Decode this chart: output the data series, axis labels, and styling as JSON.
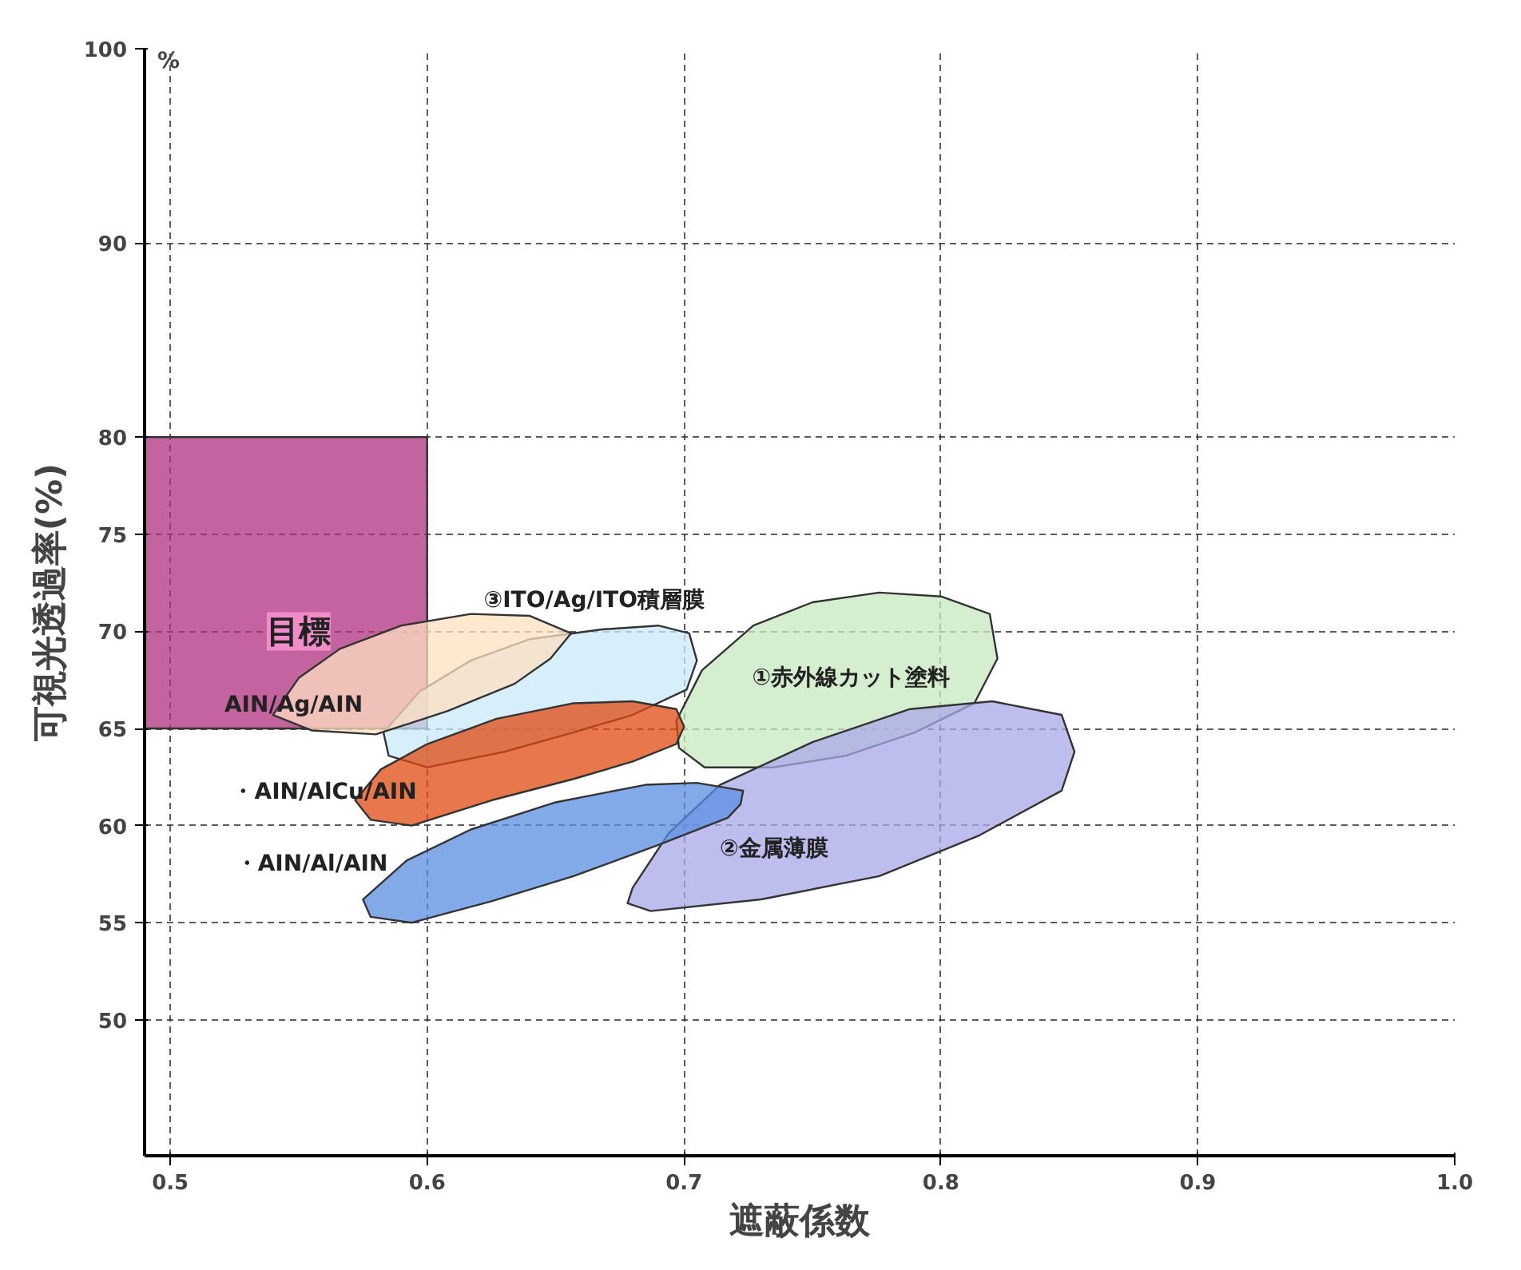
{
  "chart_data": {
    "type": "area",
    "xlabel": "遮蔽係数",
    "ylabel": "可視光透過率(%)",
    "xlim": [
      0.49,
      1.0
    ],
    "ylim": [
      43,
      100
    ],
    "xticks": [
      0.5,
      0.6,
      0.7,
      0.8,
      0.9,
      {
        "value": 1.0,
        "label": "1.0"
      }
    ],
    "yticks": [
      50,
      55,
      60,
      65,
      70,
      75,
      80,
      90,
      100
    ],
    "grid": true,
    "series": [
      {
        "color": "#b0307f",
        "x": [
          0.49,
          0.6,
          0.6,
          0.49
        ],
        "values": [
          65,
          65,
          80,
          80
        ]
      },
      {
        "color": "#c8e8c0",
        "x": [
          0.697,
          0.707,
          0.727,
          0.75,
          0.776,
          0.8,
          0.819,
          0.822,
          0.813,
          0.79,
          0.763,
          0.735,
          0.708,
          0.698
        ],
        "values": [
          65.4,
          68.0,
          70.3,
          71.5,
          72.0,
          71.8,
          70.9,
          68.6,
          66.3,
          64.8,
          63.6,
          63.0,
          63.0,
          64.0
        ]
      },
      {
        "color": "#a8a8e8",
        "x": [
          0.68,
          0.694,
          0.714,
          0.75,
          0.788,
          0.82,
          0.847,
          0.852,
          0.847,
          0.815,
          0.776,
          0.73,
          0.687,
          0.678
        ],
        "values": [
          56.8,
          59.6,
          62.1,
          64.3,
          66.0,
          66.4,
          65.7,
          63.8,
          61.8,
          59.5,
          57.4,
          56.2,
          55.6,
          56.0
        ]
      },
      {
        "color": "#c8eaf8",
        "x": [
          0.583,
          0.597,
          0.617,
          0.64,
          0.668,
          0.69,
          0.702,
          0.705,
          0.701,
          0.68,
          0.657,
          0.63,
          0.6,
          0.585
        ],
        "values": [
          64.8,
          66.9,
          68.5,
          69.6,
          70.1,
          70.3,
          69.9,
          68.5,
          67.0,
          65.7,
          64.8,
          63.8,
          63.0,
          63.6
        ]
      },
      {
        "color": "#fde0c0",
        "x": [
          0.54,
          0.55,
          0.566,
          0.59,
          0.617,
          0.64,
          0.656,
          0.648,
          0.634,
          0.608,
          0.58,
          0.555
        ],
        "values": [
          65.7,
          67.6,
          69.1,
          70.3,
          70.9,
          70.8,
          69.9,
          68.6,
          67.3,
          65.9,
          64.7,
          64.9
        ]
      },
      {
        "color": "#e04a10",
        "x": [
          0.572,
          0.582,
          0.6,
          0.627,
          0.657,
          0.68,
          0.697,
          0.7,
          0.697,
          0.68,
          0.657,
          0.625,
          0.594,
          0.578
        ],
        "values": [
          61.3,
          62.9,
          64.2,
          65.5,
          66.3,
          66.4,
          66.0,
          65.1,
          64.2,
          63.3,
          62.4,
          61.3,
          60.0,
          60.3
        ]
      },
      {
        "color": "#5a8ee0",
        "x": [
          0.575,
          0.592,
          0.617,
          0.65,
          0.685,
          0.705,
          0.723,
          0.722,
          0.717,
          0.69,
          0.657,
          0.625,
          0.594,
          0.578
        ],
        "values": [
          56.2,
          58.2,
          59.8,
          61.2,
          62.1,
          62.2,
          61.8,
          61.1,
          60.4,
          59.0,
          57.4,
          56.1,
          55.0,
          55.3
        ]
      }
    ],
    "annotations": [
      "目標",
      "③ITO/Ag/ITO積層膜",
      "①赤外線カット塗料",
      "②金属薄膜",
      "AIN/Ag/AIN",
      "・AIN/AlCu/AIN",
      "・AIN/Al/AIN",
      "%"
    ]
  }
}
